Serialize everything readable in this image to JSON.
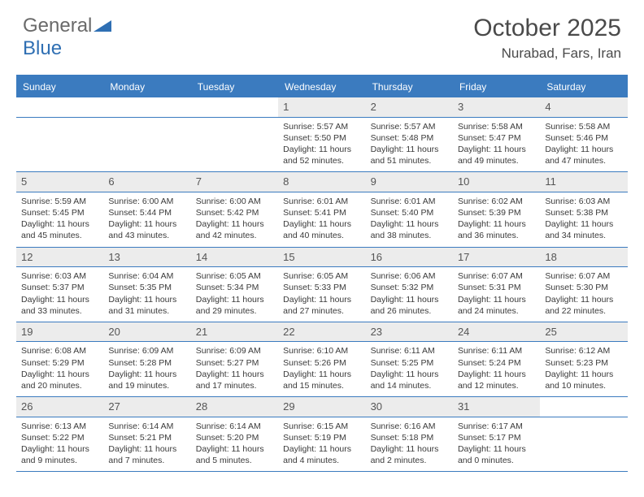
{
  "logo": {
    "text1": "General",
    "text2": "Blue"
  },
  "title": "October 2025",
  "location": "Nurabad, Fars, Iran",
  "colors": {
    "header_bg": "#3b7bbf",
    "daynum_bg": "#ececec",
    "border": "#3b7bbf",
    "text": "#3a3a3a",
    "logo_blue": "#2f6fb3"
  },
  "day_headers": [
    "Sunday",
    "Monday",
    "Tuesday",
    "Wednesday",
    "Thursday",
    "Friday",
    "Saturday"
  ],
  "weeks": [
    {
      "nums": [
        "",
        "",
        "",
        "1",
        "2",
        "3",
        "4"
      ],
      "info": [
        "",
        "",
        "",
        "Sunrise: 5:57 AM\nSunset: 5:50 PM\nDaylight: 11 hours and 52 minutes.",
        "Sunrise: 5:57 AM\nSunset: 5:48 PM\nDaylight: 11 hours and 51 minutes.",
        "Sunrise: 5:58 AM\nSunset: 5:47 PM\nDaylight: 11 hours and 49 minutes.",
        "Sunrise: 5:58 AM\nSunset: 5:46 PM\nDaylight: 11 hours and 47 minutes."
      ]
    },
    {
      "nums": [
        "5",
        "6",
        "7",
        "8",
        "9",
        "10",
        "11"
      ],
      "info": [
        "Sunrise: 5:59 AM\nSunset: 5:45 PM\nDaylight: 11 hours and 45 minutes.",
        "Sunrise: 6:00 AM\nSunset: 5:44 PM\nDaylight: 11 hours and 43 minutes.",
        "Sunrise: 6:00 AM\nSunset: 5:42 PM\nDaylight: 11 hours and 42 minutes.",
        "Sunrise: 6:01 AM\nSunset: 5:41 PM\nDaylight: 11 hours and 40 minutes.",
        "Sunrise: 6:01 AM\nSunset: 5:40 PM\nDaylight: 11 hours and 38 minutes.",
        "Sunrise: 6:02 AM\nSunset: 5:39 PM\nDaylight: 11 hours and 36 minutes.",
        "Sunrise: 6:03 AM\nSunset: 5:38 PM\nDaylight: 11 hours and 34 minutes."
      ]
    },
    {
      "nums": [
        "12",
        "13",
        "14",
        "15",
        "16",
        "17",
        "18"
      ],
      "info": [
        "Sunrise: 6:03 AM\nSunset: 5:37 PM\nDaylight: 11 hours and 33 minutes.",
        "Sunrise: 6:04 AM\nSunset: 5:35 PM\nDaylight: 11 hours and 31 minutes.",
        "Sunrise: 6:05 AM\nSunset: 5:34 PM\nDaylight: 11 hours and 29 minutes.",
        "Sunrise: 6:05 AM\nSunset: 5:33 PM\nDaylight: 11 hours and 27 minutes.",
        "Sunrise: 6:06 AM\nSunset: 5:32 PM\nDaylight: 11 hours and 26 minutes.",
        "Sunrise: 6:07 AM\nSunset: 5:31 PM\nDaylight: 11 hours and 24 minutes.",
        "Sunrise: 6:07 AM\nSunset: 5:30 PM\nDaylight: 11 hours and 22 minutes."
      ]
    },
    {
      "nums": [
        "19",
        "20",
        "21",
        "22",
        "23",
        "24",
        "25"
      ],
      "info": [
        "Sunrise: 6:08 AM\nSunset: 5:29 PM\nDaylight: 11 hours and 20 minutes.",
        "Sunrise: 6:09 AM\nSunset: 5:28 PM\nDaylight: 11 hours and 19 minutes.",
        "Sunrise: 6:09 AM\nSunset: 5:27 PM\nDaylight: 11 hours and 17 minutes.",
        "Sunrise: 6:10 AM\nSunset: 5:26 PM\nDaylight: 11 hours and 15 minutes.",
        "Sunrise: 6:11 AM\nSunset: 5:25 PM\nDaylight: 11 hours and 14 minutes.",
        "Sunrise: 6:11 AM\nSunset: 5:24 PM\nDaylight: 11 hours and 12 minutes.",
        "Sunrise: 6:12 AM\nSunset: 5:23 PM\nDaylight: 11 hours and 10 minutes."
      ]
    },
    {
      "nums": [
        "26",
        "27",
        "28",
        "29",
        "30",
        "31",
        ""
      ],
      "info": [
        "Sunrise: 6:13 AM\nSunset: 5:22 PM\nDaylight: 11 hours and 9 minutes.",
        "Sunrise: 6:14 AM\nSunset: 5:21 PM\nDaylight: 11 hours and 7 minutes.",
        "Sunrise: 6:14 AM\nSunset: 5:20 PM\nDaylight: 11 hours and 5 minutes.",
        "Sunrise: 6:15 AM\nSunset: 5:19 PM\nDaylight: 11 hours and 4 minutes.",
        "Sunrise: 6:16 AM\nSunset: 5:18 PM\nDaylight: 11 hours and 2 minutes.",
        "Sunrise: 6:17 AM\nSunset: 5:17 PM\nDaylight: 11 hours and 0 minutes.",
        ""
      ]
    }
  ]
}
